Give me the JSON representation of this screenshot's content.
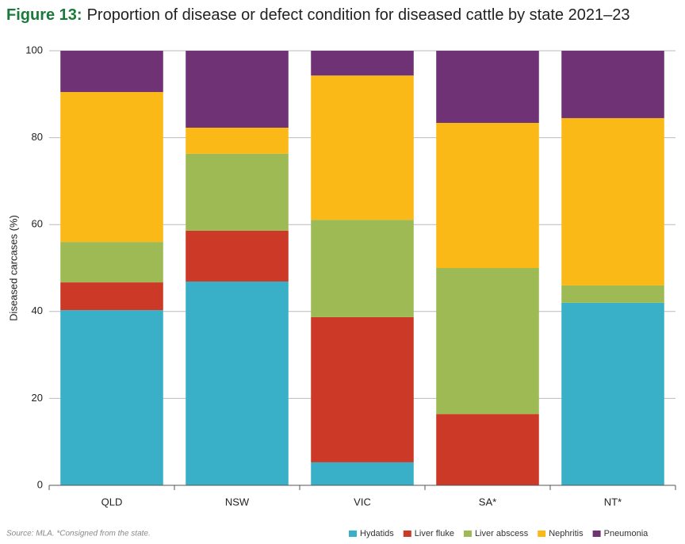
{
  "chart_data": {
    "type": "stacked_bar",
    "figure_label": "Figure 13:",
    "title": "Proportion of disease or defect condition for diseased cattle by state 2021–23",
    "source": "Source: MLA. *Consigned from the state.",
    "y_label": "Diseased carcases (%)",
    "categories": [
      "QLD",
      "NSW",
      "VIC",
      "SA*",
      "NT*"
    ],
    "series": [
      {
        "name": "Hydatids",
        "color": "#3aafc8",
        "values": [
          40.3,
          46.9,
          5.3,
          0,
          42.0
        ]
      },
      {
        "name": "Liver fluke",
        "color": "#cc3a27",
        "values": [
          6.4,
          11.7,
          33.4,
          16.4,
          0
        ]
      },
      {
        "name": "Liver abscess",
        "color": "#9dba55",
        "values": [
          9.3,
          17.7,
          22.4,
          33.6,
          4.0
        ]
      },
      {
        "name": "Nephritis",
        "color": "#fbb917",
        "values": [
          34.5,
          6.0,
          33.2,
          33.4,
          38.5
        ]
      },
      {
        "name": "Pneumonia",
        "color": "#6e3275",
        "values": [
          9.5,
          17.7,
          5.7,
          16.6,
          15.5
        ]
      }
    ],
    "ylim": [
      0,
      100
    ],
    "yticks": [
      0,
      20,
      40,
      60,
      80,
      100
    ],
    "grid": true
  }
}
